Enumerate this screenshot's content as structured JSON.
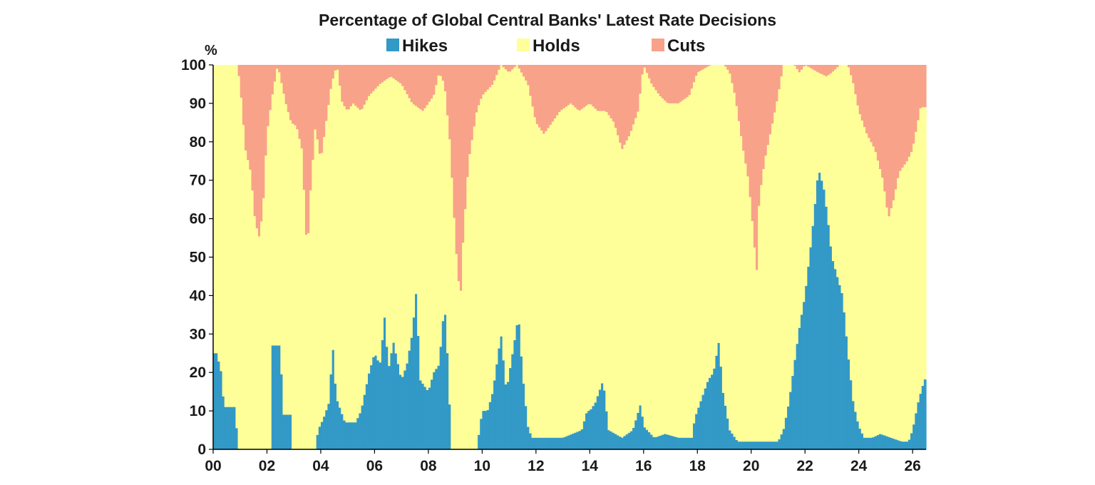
{
  "chart_data": {
    "type": "bar",
    "stacked": true,
    "title": "Percentage of Global Central Banks' Latest Rate Decisions",
    "ylabel": "%",
    "ylim": [
      0,
      100
    ],
    "yticks": [
      0,
      10,
      20,
      30,
      40,
      50,
      60,
      70,
      80,
      90,
      100
    ],
    "xlim": [
      2000.0,
      2026.5
    ],
    "xticks": [
      {
        "value": 2000,
        "label": "00"
      },
      {
        "value": 2002,
        "label": "02"
      },
      {
        "value": 2004,
        "label": "04"
      },
      {
        "value": 2006,
        "label": "06"
      },
      {
        "value": 2008,
        "label": "08"
      },
      {
        "value": 2010,
        "label": "10"
      },
      {
        "value": 2012,
        "label": "12"
      },
      {
        "value": 2014,
        "label": "14"
      },
      {
        "value": 2016,
        "label": "16"
      },
      {
        "value": 2018,
        "label": "18"
      },
      {
        "value": 2020,
        "label": "20"
      },
      {
        "value": 2022,
        "label": "22"
      },
      {
        "value": 2024,
        "label": "24"
      },
      {
        "value": 2026,
        "label": "26"
      }
    ],
    "legend_placement": "top-center",
    "grid": false,
    "colors": {
      "Hikes": "#3399c6",
      "Holds": "#ffff99",
      "Cuts": "#f8a28a"
    },
    "series_order": [
      "Hikes",
      "Holds",
      "Cuts"
    ],
    "legend": [
      {
        "name": "Hikes"
      },
      {
        "name": "Holds"
      },
      {
        "name": "Cuts"
      }
    ],
    "hikes_knots": [
      [
        2000.0,
        25
      ],
      [
        2000.2,
        25
      ],
      [
        2000.25,
        12
      ],
      [
        2000.3,
        22
      ],
      [
        2000.4,
        11
      ],
      [
        2000.8,
        11
      ],
      [
        2000.95,
        0
      ],
      [
        2002.15,
        0
      ],
      [
        2002.2,
        27
      ],
      [
        2002.5,
        27
      ],
      [
        2002.55,
        18
      ],
      [
        2002.6,
        9
      ],
      [
        2002.9,
        9
      ],
      [
        2002.95,
        0
      ],
      [
        2003.8,
        0
      ],
      [
        2003.9,
        5
      ],
      [
        2004.1,
        8
      ],
      [
        2004.3,
        12
      ],
      [
        2004.45,
        27
      ],
      [
        2004.5,
        20
      ],
      [
        2004.6,
        13
      ],
      [
        2004.9,
        7
      ],
      [
        2005.3,
        7
      ],
      [
        2005.5,
        10
      ],
      [
        2005.8,
        20
      ],
      [
        2006.0,
        25
      ],
      [
        2006.2,
        22
      ],
      [
        2006.4,
        36
      ],
      [
        2006.5,
        20
      ],
      [
        2006.7,
        28
      ],
      [
        2007.0,
        18
      ],
      [
        2007.2,
        22
      ],
      [
        2007.4,
        30
      ],
      [
        2007.55,
        41
      ],
      [
        2007.7,
        18
      ],
      [
        2008.0,
        15
      ],
      [
        2008.2,
        20
      ],
      [
        2008.4,
        22
      ],
      [
        2008.6,
        38
      ],
      [
        2008.75,
        20
      ],
      [
        2008.85,
        0
      ],
      [
        2009.8,
        0
      ],
      [
        2009.9,
        5
      ],
      [
        2010.0,
        10
      ],
      [
        2010.2,
        10
      ],
      [
        2010.4,
        15
      ],
      [
        2010.7,
        30
      ],
      [
        2010.9,
        15
      ],
      [
        2011.2,
        28
      ],
      [
        2011.35,
        35
      ],
      [
        2011.5,
        20
      ],
      [
        2011.7,
        6
      ],
      [
        2011.85,
        3
      ],
      [
        2012.2,
        3
      ],
      [
        2012.5,
        3
      ],
      [
        2013.0,
        3
      ],
      [
        2013.7,
        5
      ],
      [
        2013.9,
        10
      ],
      [
        2014.0,
        10
      ],
      [
        2014.2,
        12
      ],
      [
        2014.5,
        18
      ],
      [
        2014.7,
        5
      ],
      [
        2015.2,
        3
      ],
      [
        2015.6,
        5
      ],
      [
        2015.9,
        12
      ],
      [
        2016.0,
        6
      ],
      [
        2016.4,
        3
      ],
      [
        2016.8,
        4
      ],
      [
        2017.3,
        3
      ],
      [
        2017.8,
        3
      ],
      [
        2017.9,
        8
      ],
      [
        2018.1,
        12
      ],
      [
        2018.4,
        18
      ],
      [
        2018.6,
        20
      ],
      [
        2018.8,
        28
      ],
      [
        2018.95,
        15
      ],
      [
        2019.2,
        5
      ],
      [
        2019.5,
        2
      ],
      [
        2019.8,
        2
      ],
      [
        2020.3,
        2
      ],
      [
        2020.6,
        2
      ],
      [
        2021.0,
        2
      ],
      [
        2021.2,
        5
      ],
      [
        2021.4,
        12
      ],
      [
        2021.6,
        22
      ],
      [
        2021.8,
        32
      ],
      [
        2022.0,
        40
      ],
      [
        2022.2,
        52
      ],
      [
        2022.35,
        62
      ],
      [
        2022.5,
        73
      ],
      [
        2022.7,
        68
      ],
      [
        2022.85,
        60
      ],
      [
        2023.0,
        50
      ],
      [
        2023.2,
        45
      ],
      [
        2023.4,
        40
      ],
      [
        2023.6,
        25
      ],
      [
        2023.8,
        12
      ],
      [
        2024.0,
        6
      ],
      [
        2024.2,
        3
      ],
      [
        2024.5,
        3
      ],
      [
        2024.8,
        4
      ],
      [
        2025.2,
        3
      ],
      [
        2025.6,
        2
      ],
      [
        2025.85,
        2
      ],
      [
        2026.0,
        5
      ],
      [
        2026.2,
        12
      ],
      [
        2026.35,
        16
      ],
      [
        2026.5,
        19
      ]
    ],
    "cuts_knots": [
      [
        2000.0,
        0
      ],
      [
        2000.9,
        0
      ],
      [
        2001.0,
        5
      ],
      [
        2001.2,
        22
      ],
      [
        2001.4,
        28
      ],
      [
        2001.55,
        40
      ],
      [
        2001.7,
        45
      ],
      [
        2001.85,
        38
      ],
      [
        2002.0,
        18
      ],
      [
        2002.2,
        8
      ],
      [
        2002.4,
        0
      ],
      [
        2002.55,
        5
      ],
      [
        2002.7,
        10
      ],
      [
        2002.9,
        15
      ],
      [
        2003.1,
        16
      ],
      [
        2003.3,
        22
      ],
      [
        2003.5,
        50
      ],
      [
        2003.6,
        35
      ],
      [
        2003.8,
        16
      ],
      [
        2004.0,
        25
      ],
      [
        2004.2,
        15
      ],
      [
        2004.4,
        5
      ],
      [
        2004.6,
        0
      ],
      [
        2004.8,
        10
      ],
      [
        2005.0,
        12
      ],
      [
        2005.2,
        10
      ],
      [
        2005.5,
        12
      ],
      [
        2005.8,
        8
      ],
      [
        2006.2,
        5
      ],
      [
        2006.6,
        3
      ],
      [
        2007.0,
        5
      ],
      [
        2007.4,
        10
      ],
      [
        2007.8,
        12
      ],
      [
        2008.2,
        8
      ],
      [
        2008.4,
        2
      ],
      [
        2008.6,
        5
      ],
      [
        2008.8,
        20
      ],
      [
        2009.0,
        45
      ],
      [
        2009.1,
        55
      ],
      [
        2009.2,
        60
      ],
      [
        2009.3,
        45
      ],
      [
        2009.5,
        25
      ],
      [
        2009.8,
        12
      ],
      [
        2010.0,
        8
      ],
      [
        2010.4,
        5
      ],
      [
        2010.7,
        0
      ],
      [
        2011.0,
        2
      ],
      [
        2011.3,
        0
      ],
      [
        2011.7,
        5
      ],
      [
        2012.0,
        15
      ],
      [
        2012.3,
        18
      ],
      [
        2012.6,
        15
      ],
      [
        2012.9,
        12
      ],
      [
        2013.3,
        10
      ],
      [
        2013.6,
        12
      ],
      [
        2014.0,
        10
      ],
      [
        2014.3,
        12
      ],
      [
        2014.6,
        12
      ],
      [
        2014.9,
        15
      ],
      [
        2015.2,
        22
      ],
      [
        2015.5,
        18
      ],
      [
        2015.8,
        12
      ],
      [
        2016.0,
        0
      ],
      [
        2016.3,
        5
      ],
      [
        2016.6,
        8
      ],
      [
        2016.9,
        10
      ],
      [
        2017.3,
        10
      ],
      [
        2017.7,
        8
      ],
      [
        2018.0,
        2
      ],
      [
        2018.5,
        0
      ],
      [
        2019.0,
        0
      ],
      [
        2019.2,
        2
      ],
      [
        2019.4,
        8
      ],
      [
        2019.7,
        22
      ],
      [
        2019.9,
        30
      ],
      [
        2020.1,
        45
      ],
      [
        2020.2,
        55
      ],
      [
        2020.3,
        35
      ],
      [
        2020.5,
        25
      ],
      [
        2020.8,
        15
      ],
      [
        2021.0,
        8
      ],
      [
        2021.2,
        0
      ],
      [
        2021.6,
        0
      ],
      [
        2021.8,
        2
      ],
      [
        2022.0,
        0
      ],
      [
        2022.5,
        2
      ],
      [
        2022.8,
        3
      ],
      [
        2023.0,
        2
      ],
      [
        2023.3,
        0
      ],
      [
        2023.6,
        0
      ],
      [
        2023.8,
        5
      ],
      [
        2024.0,
        12
      ],
      [
        2024.3,
        18
      ],
      [
        2024.6,
        22
      ],
      [
        2024.9,
        30
      ],
      [
        2025.1,
        40
      ],
      [
        2025.3,
        35
      ],
      [
        2025.5,
        28
      ],
      [
        2025.8,
        25
      ],
      [
        2026.0,
        22
      ],
      [
        2026.3,
        11
      ],
      [
        2026.5,
        11
      ]
    ]
  }
}
